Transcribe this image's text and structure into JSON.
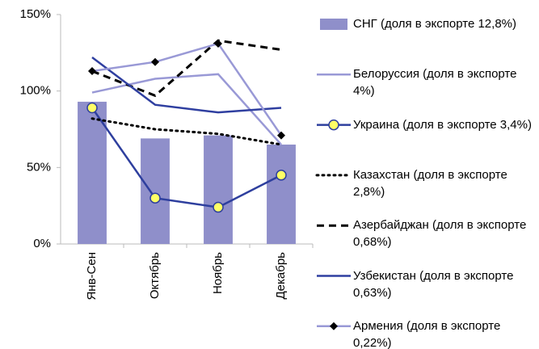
{
  "chart_data": {
    "type": "bar-line",
    "categories": [
      "Янв-Сен",
      "Октябрь",
      "Ноябрь",
      "Декабрь"
    ],
    "ylim": [
      0,
      150
    ],
    "yticks": [
      {
        "value": 0,
        "label": "0%"
      },
      {
        "value": 50,
        "label": "50%"
      },
      {
        "value": 100,
        "label": "100%"
      },
      {
        "value": 150,
        "label": "150%"
      }
    ],
    "series": [
      {
        "name": "СНГ (доля в экспорте 12,8%)",
        "type": "bar",
        "color": "#8f8fca",
        "values": [
          93,
          69,
          71,
          65
        ]
      },
      {
        "name": "Белоруссия (доля в экспорте 4%)",
        "type": "line",
        "color": "#9999d6",
        "dash": "solid",
        "marker": "none",
        "values": [
          99,
          108,
          111,
          65
        ]
      },
      {
        "name": "Украина (доля в экспорте 3,4%)",
        "type": "line",
        "color": "#2e3f9e",
        "dash": "solid",
        "marker": "circle",
        "values": [
          89,
          30,
          24,
          45
        ]
      },
      {
        "name": "Казахстан (доля в экспорте 2,8%)",
        "type": "line",
        "color": "#000000",
        "dash": "dotted",
        "marker": "none",
        "values": [
          82,
          75,
          72,
          65
        ]
      },
      {
        "name": "Азербайджан (доля в экспорте 0,68%)",
        "type": "line",
        "color": "#000000",
        "dash": "dashed",
        "marker": "none",
        "values": [
          113,
          97,
          133,
          127
        ]
      },
      {
        "name": "Узбекистан (доля в экспорте 0,63%)",
        "type": "line",
        "color": "#2f3fa0",
        "dash": "solid",
        "marker": "none",
        "values": [
          122,
          91,
          86,
          89
        ]
      },
      {
        "name": "Армения (доля в экспорте 0,22%)",
        "type": "line",
        "color": "#9999d6",
        "dash": "solid",
        "marker": "diamond",
        "values": [
          113,
          119,
          131,
          71
        ]
      }
    ]
  }
}
